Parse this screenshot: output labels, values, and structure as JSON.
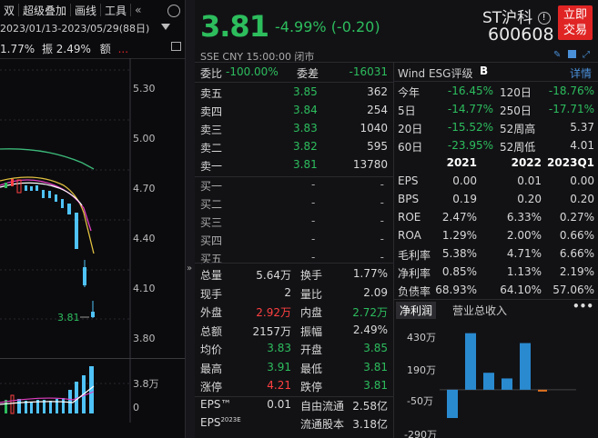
{
  "toolbar": {
    "items": [
      "双",
      "超级叠加",
      "画线",
      "工具"
    ]
  },
  "left": {
    "date_range": "2023/01/13-2023/05/29(88日)",
    "info_pct1": "1.77%",
    "info_label": "振",
    "info_pct2": "2.49%",
    "info_extra": "额",
    "price_axis": [
      "5.30",
      "5.00",
      "4.70",
      "4.40",
      "4.10",
      "3.80"
    ],
    "low_label": "3.81",
    "vol_axis": [
      "3.8万",
      "0"
    ]
  },
  "quote": {
    "price": "3.81",
    "change": "-4.99% (-0.20)",
    "name": "ST沪科",
    "code": "600608",
    "trade_button": [
      "立即",
      "交易"
    ],
    "meta": "SSE  CNY  15:00:00  闭市"
  },
  "order_book": {
    "weibi_label": "委比",
    "weibi_value": "-100.00%",
    "weicha_label": "委差",
    "weicha_value": "-16031",
    "asks": [
      {
        "label": "卖五",
        "price": "3.85",
        "vol": "362"
      },
      {
        "label": "卖四",
        "price": "3.84",
        "vol": "254"
      },
      {
        "label": "卖三",
        "price": "3.83",
        "vol": "1040"
      },
      {
        "label": "卖二",
        "price": "3.82",
        "vol": "595"
      },
      {
        "label": "卖一",
        "price": "3.81",
        "vol": "13780"
      }
    ],
    "bids": [
      {
        "label": "买一",
        "price": "-",
        "vol": "-"
      },
      {
        "label": "买二",
        "price": "-",
        "vol": "-"
      },
      {
        "label": "买三",
        "price": "-",
        "vol": "-"
      },
      {
        "label": "买四",
        "price": "-",
        "vol": "-"
      },
      {
        "label": "买五",
        "price": "-",
        "vol": "-"
      }
    ]
  },
  "stats": [
    {
      "l1": "总量",
      "v1": "5.64万",
      "l2": "换手",
      "v2": "1.77%",
      "c1": "",
      "c2": ""
    },
    {
      "l1": "现手",
      "v1": "2",
      "l2": "量比",
      "v2": "2.09",
      "c1": "",
      "c2": ""
    },
    {
      "l1": "外盘",
      "v1": "2.92万",
      "l2": "内盘",
      "v2": "2.72万",
      "c1": "up",
      "c2": "down"
    },
    {
      "l1": "总额",
      "v1": "2157万",
      "l2": "振幅",
      "v2": "2.49%",
      "c1": "",
      "c2": ""
    },
    {
      "l1": "均价",
      "v1": "3.83",
      "l2": "开盘",
      "v2": "3.85",
      "c1": "down",
      "c2": "down"
    },
    {
      "l1": "最高",
      "v1": "3.91",
      "l2": "最低",
      "v2": "3.81",
      "c1": "down",
      "c2": "down"
    },
    {
      "l1": "涨停",
      "v1": "4.21",
      "l2": "跌停",
      "v2": "3.81",
      "c1": "up",
      "c2": "down"
    },
    {
      "l1": "EPS™",
      "v1": "0.01",
      "l2": "自由流通",
      "v2": "2.58亿",
      "c1": "",
      "c2": ""
    },
    {
      "l1": "EPS2023E",
      "v1": "",
      "l2": "流通股本",
      "v2": "3.18亿",
      "c1": "",
      "c2": ""
    }
  ],
  "esg": {
    "label": "Wind ESG评级",
    "grade": "B",
    "detail": "详情"
  },
  "perf": [
    {
      "l1": "今年",
      "v1": "-16.45%",
      "l2": "120日",
      "v2": "-18.76%",
      "c2": "down"
    },
    {
      "l1": "5日",
      "v1": "-14.77%",
      "l2": "250日",
      "v2": "-17.71%",
      "c2": "down"
    },
    {
      "l1": "20日",
      "v1": "-15.52%",
      "l2": "52周高",
      "v2": "5.37",
      "c2": ""
    },
    {
      "l1": "60日",
      "v1": "-23.95%",
      "l2": "52周低",
      "v2": "4.01",
      "c2": ""
    }
  ],
  "fin": {
    "headers": [
      "2021",
      "2022",
      "2023Q1"
    ],
    "rows": [
      {
        "label": "EPS",
        "vals": [
          "0.00",
          "0.01",
          "0.00"
        ]
      },
      {
        "label": "BPS",
        "vals": [
          "0.19",
          "0.20",
          "0.20"
        ]
      },
      {
        "label": "ROE",
        "vals": [
          "2.47%",
          "6.33%",
          "0.27%"
        ]
      },
      {
        "label": "ROA",
        "vals": [
          "1.29%",
          "2.00%",
          "0.66%"
        ]
      },
      {
        "label": "毛利率",
        "vals": [
          "5.38%",
          "4.71%",
          "6.66%"
        ]
      },
      {
        "label": "净利率",
        "vals": [
          "0.85%",
          "1.13%",
          "2.19%"
        ]
      },
      {
        "label": "负债率",
        "vals": [
          "68.93%",
          "64.10%",
          "57.06%"
        ]
      }
    ]
  },
  "mini_chart": {
    "tabs": [
      "净利润",
      "营业总收入"
    ],
    "axis": [
      "430万",
      "190万",
      "-50万",
      "-290万"
    ]
  },
  "chart_data": {
    "type": "bar",
    "values": [
      -200,
      400,
      120,
      80,
      330,
      -10
    ],
    "ylim": [
      -290,
      430
    ]
  }
}
